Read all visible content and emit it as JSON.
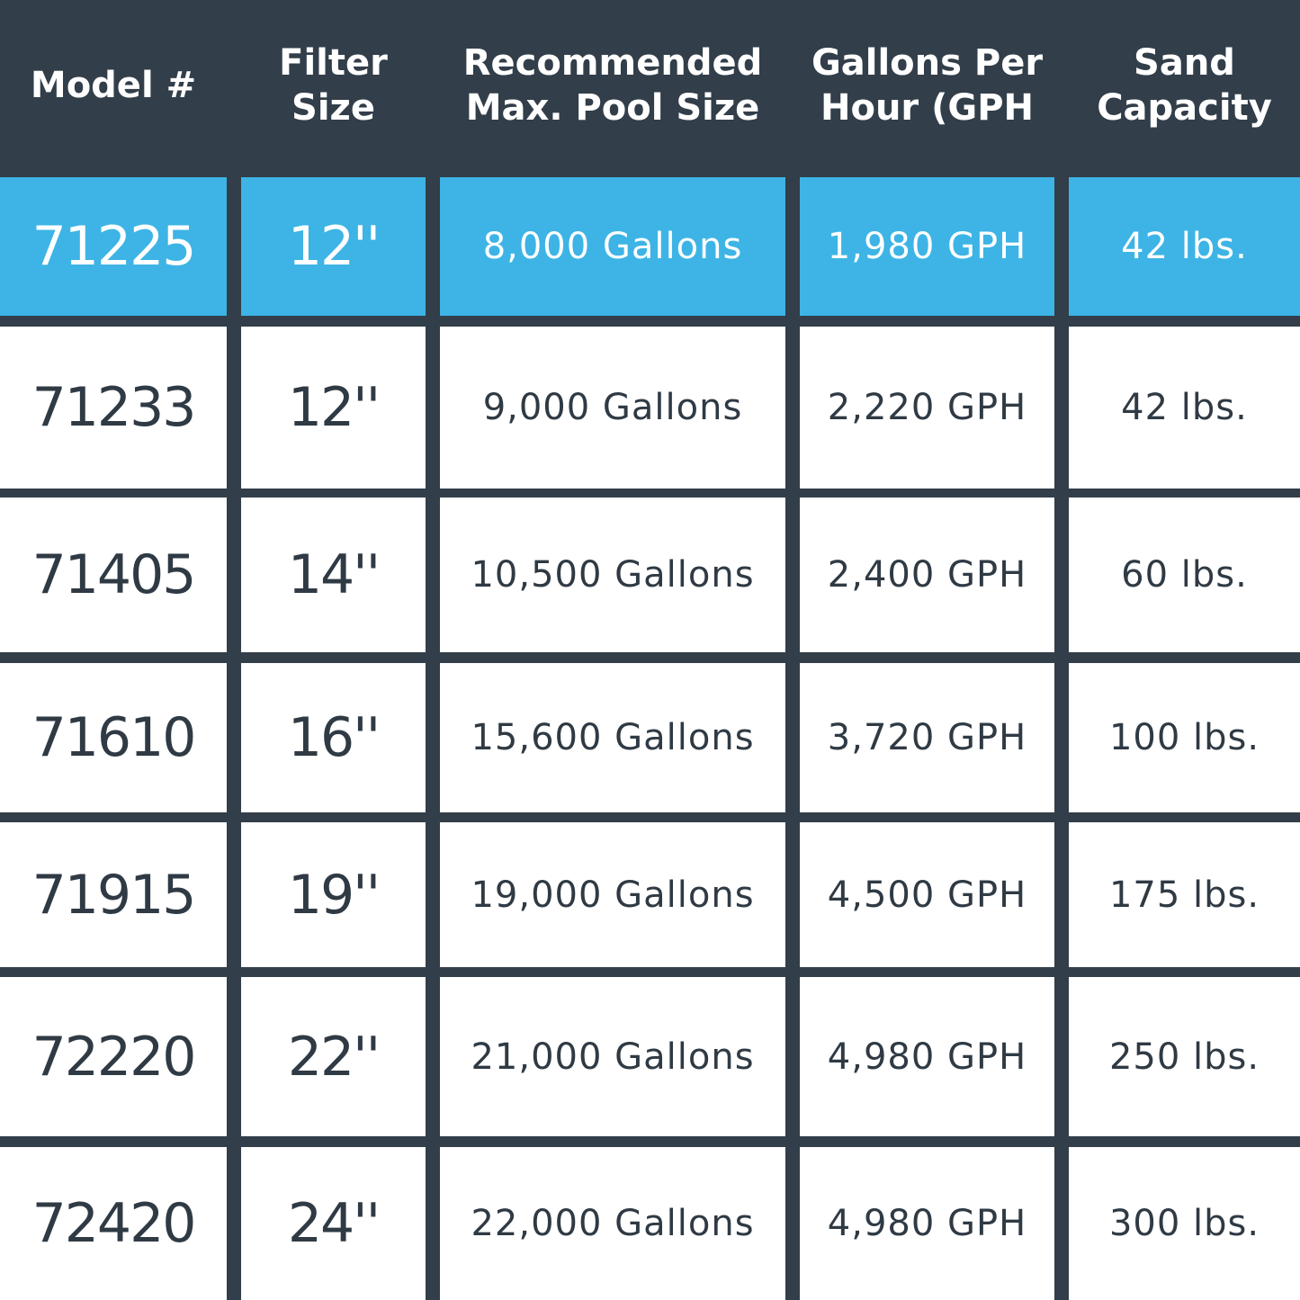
{
  "table": {
    "header": [
      [
        "Model #"
      ],
      [
        "Filter",
        "Size"
      ],
      [
        "Recommended",
        "Max. Pool Size"
      ],
      [
        "Gallons Per",
        "Hour (GPH"
      ],
      [
        "Sand",
        "Capacity"
      ]
    ],
    "rows": [
      [
        "71225",
        "12''",
        "8,000 Gallons",
        "1,980 GPH",
        "42 lbs."
      ],
      [
        "71233",
        "12''",
        "9,000 Gallons",
        "2,220 GPH",
        "42 lbs."
      ],
      [
        "71405",
        "14''",
        "10,500 Gallons",
        "2,400 GPH",
        "60 lbs."
      ],
      [
        "71610",
        "16''",
        "15,600 Gallons",
        "3,720 GPH",
        "100 lbs."
      ],
      [
        "71915",
        "19''",
        "19,000 Gallons",
        "4,500 GPH",
        "175 lbs."
      ],
      [
        "72220",
        "22''",
        "21,000 Gallons",
        "4,980 GPH",
        "250 lbs."
      ],
      [
        "72420",
        "24''",
        "22,000 Gallons",
        "4,980 GPH",
        "300 lbs."
      ]
    ]
  }
}
